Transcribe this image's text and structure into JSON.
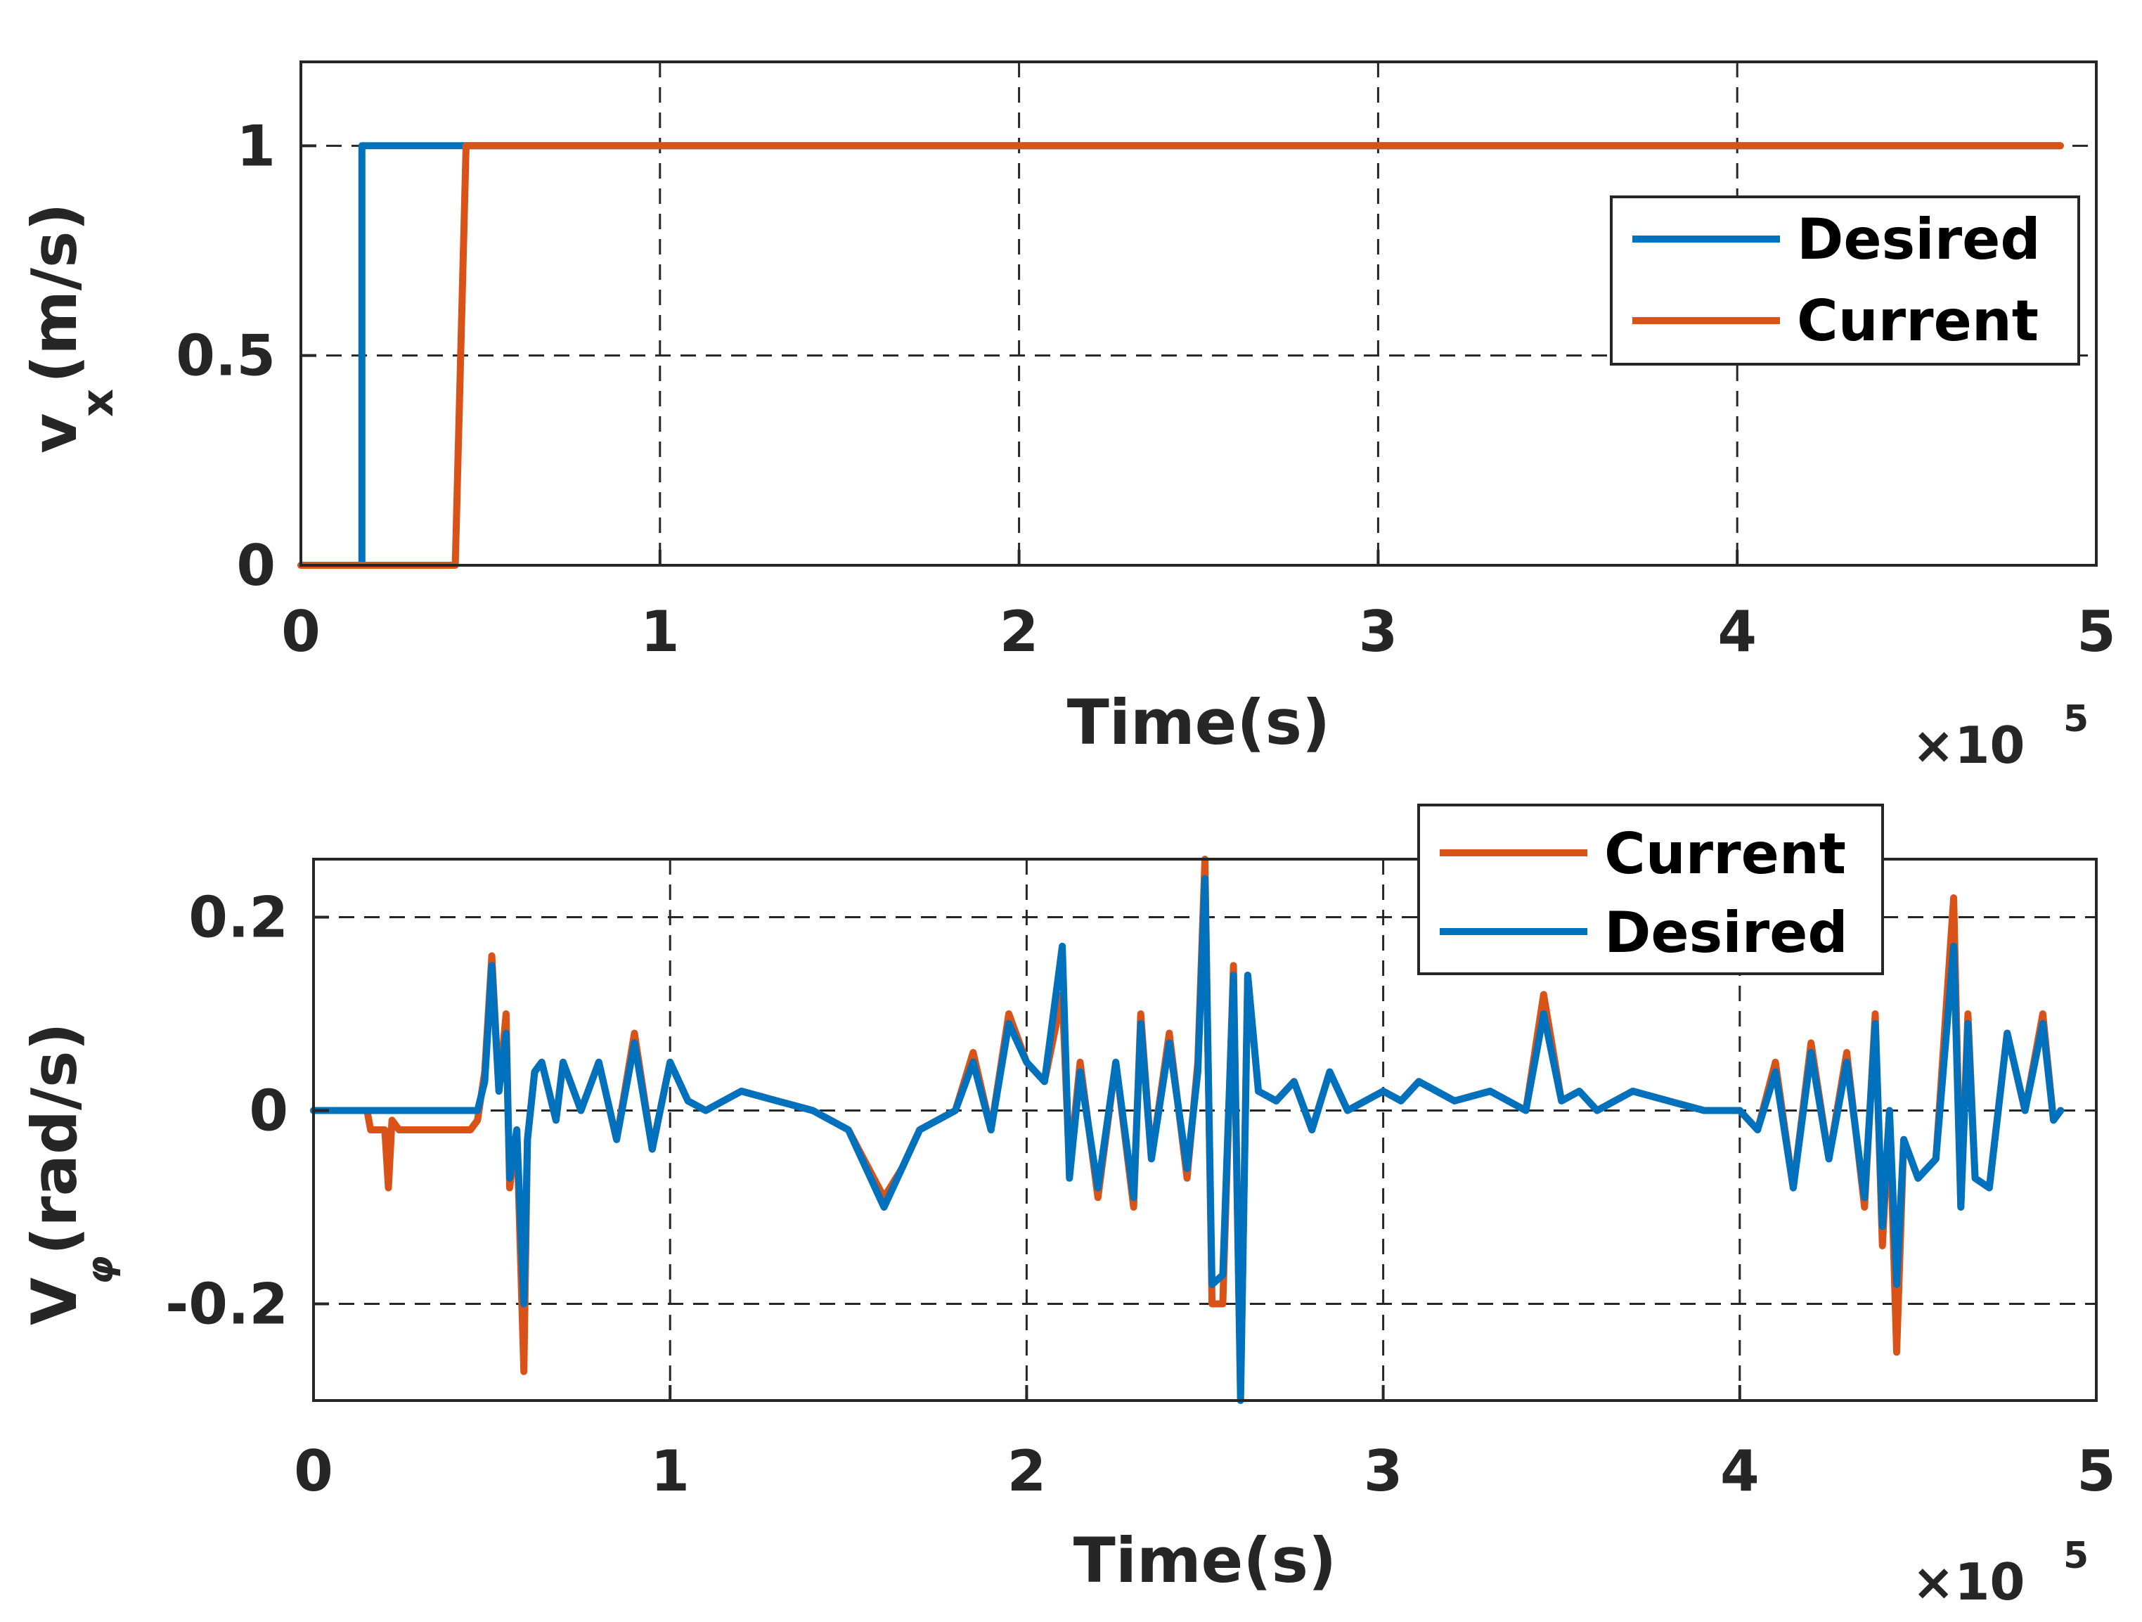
{
  "colors": {
    "desired": "#0072BD",
    "current": "#D95319",
    "axis": "#262626",
    "grid": "#262626"
  },
  "chart_data": [
    {
      "type": "line",
      "xlabel": "Time(s)",
      "ylabel": "v",
      "ylabel_sub": "x",
      "ylabel_unit": "(m/s)",
      "x_exponent_base": "×10",
      "x_exponent_power": "5",
      "xlim": [
        0,
        5
      ],
      "ylim": [
        0,
        1.2
      ],
      "xticks": [
        0,
        1,
        2,
        3,
        4,
        5
      ],
      "xtick_labels": [
        "0",
        "1",
        "2",
        "3",
        "4",
        "5"
      ],
      "yticks": [
        0,
        0.5,
        1
      ],
      "ytick_labels": [
        "0",
        "0.5",
        "1"
      ],
      "grid": true,
      "legend_position": "top-right",
      "legend": [
        "Desired",
        "Current"
      ],
      "series": [
        {
          "name": "Desired",
          "color_key": "desired",
          "x": [
            0,
            0.17,
            0.17,
            4.9
          ],
          "y": [
            0,
            0,
            1,
            1
          ]
        },
        {
          "name": "Current",
          "color_key": "current",
          "x": [
            0,
            0.43,
            0.46,
            4.9
          ],
          "y": [
            0,
            0,
            1,
            1
          ]
        }
      ]
    },
    {
      "type": "line",
      "xlabel": "Time(s)",
      "ylabel": "V",
      "ylabel_sub": "φ",
      "ylabel_unit": "(rad/s)",
      "x_exponent_base": "×10",
      "x_exponent_power": "5",
      "xlim": [
        0,
        5
      ],
      "ylim": [
        -0.3,
        0.26
      ],
      "xticks": [
        0,
        1,
        2,
        3,
        4,
        5
      ],
      "xtick_labels": [
        "0",
        "1",
        "2",
        "3",
        "4",
        "5"
      ],
      "yticks": [
        -0.2,
        0,
        0.2
      ],
      "ytick_labels": [
        "-0.2",
        "0",
        "0.2"
      ],
      "grid": true,
      "legend_position": "top-right",
      "legend": [
        "Current",
        "Desired"
      ],
      "series": [
        {
          "name": "Current",
          "color_key": "current",
          "x": [
            0,
            0.15,
            0.16,
            0.2,
            0.21,
            0.22,
            0.24,
            0.3,
            0.4,
            0.44,
            0.46,
            0.48,
            0.5,
            0.52,
            0.54,
            0.55,
            0.57,
            0.59,
            0.6,
            0.62,
            0.64,
            0.66,
            0.68,
            0.7,
            0.75,
            0.8,
            0.85,
            0.9,
            0.95,
            1.0,
            1.05,
            1.1,
            1.2,
            1.3,
            1.4,
            1.5,
            1.6,
            1.65,
            1.7,
            1.8,
            1.85,
            1.9,
            1.95,
            2.0,
            2.05,
            2.1,
            2.12,
            2.15,
            2.2,
            2.25,
            2.3,
            2.32,
            2.35,
            2.4,
            2.45,
            2.48,
            2.5,
            2.52,
            2.55,
            2.58,
            2.6,
            2.62,
            2.65,
            2.7,
            2.75,
            2.8,
            2.85,
            2.9,
            2.95,
            3.0,
            3.05,
            3.1,
            3.2,
            3.3,
            3.4,
            3.45,
            3.5,
            3.55,
            3.6,
            3.7,
            3.8,
            3.9,
            4.0,
            4.05,
            4.1,
            4.15,
            4.2,
            4.25,
            4.3,
            4.35,
            4.38,
            4.4,
            4.42,
            4.44,
            4.46,
            4.5,
            4.55,
            4.6,
            4.62,
            4.64,
            4.66,
            4.7,
            4.75,
            4.8,
            4.85,
            4.88,
            4.9
          ],
          "y": [
            0,
            0,
            -0.02,
            -0.02,
            -0.08,
            -0.01,
            -0.02,
            -0.02,
            -0.02,
            -0.02,
            -0.01,
            0.04,
            0.16,
            0.02,
            0.1,
            -0.08,
            -0.02,
            -0.27,
            -0.03,
            0.04,
            0.05,
            0.02,
            -0.01,
            0.05,
            0.0,
            0.05,
            -0.03,
            0.08,
            -0.04,
            0.05,
            0.01,
            0.0,
            0.02,
            0.01,
            0.0,
            -0.02,
            -0.09,
            -0.06,
            -0.02,
            0.0,
            0.06,
            -0.02,
            0.1,
            0.05,
            0.03,
            0.12,
            -0.06,
            0.05,
            -0.09,
            0.05,
            -0.1,
            0.1,
            -0.05,
            0.08,
            -0.07,
            0.05,
            0.26,
            -0.2,
            -0.2,
            0.15,
            -0.29,
            0.14,
            0.02,
            0.01,
            0.03,
            -0.02,
            0.04,
            0.0,
            0.01,
            0.02,
            0.01,
            0.03,
            0.01,
            0.02,
            0.0,
            0.12,
            0.01,
            0.02,
            0.0,
            0.02,
            0.01,
            0.0,
            0.0,
            -0.02,
            0.05,
            -0.08,
            0.07,
            -0.05,
            0.06,
            -0.1,
            0.1,
            -0.14,
            0.0,
            -0.25,
            -0.03,
            -0.07,
            -0.05,
            0.22,
            -0.1,
            0.1,
            -0.07,
            -0.08,
            0.08,
            0.0,
            0.1,
            -0.01,
            0.0
          ]
        },
        {
          "name": "Desired",
          "color_key": "desired",
          "x": [
            0,
            0.1,
            0.2,
            0.3,
            0.4,
            0.44,
            0.46,
            0.48,
            0.5,
            0.52,
            0.54,
            0.55,
            0.57,
            0.59,
            0.6,
            0.62,
            0.64,
            0.66,
            0.68,
            0.7,
            0.75,
            0.8,
            0.85,
            0.9,
            0.95,
            1.0,
            1.05,
            1.1,
            1.2,
            1.3,
            1.4,
            1.5,
            1.6,
            1.65,
            1.7,
            1.8,
            1.85,
            1.9,
            1.95,
            2.0,
            2.05,
            2.1,
            2.12,
            2.15,
            2.2,
            2.25,
            2.3,
            2.32,
            2.35,
            2.4,
            2.45,
            2.48,
            2.5,
            2.52,
            2.55,
            2.58,
            2.6,
            2.62,
            2.65,
            2.7,
            2.75,
            2.8,
            2.85,
            2.9,
            2.95,
            3.0,
            3.05,
            3.1,
            3.2,
            3.3,
            3.4,
            3.45,
            3.5,
            3.55,
            3.6,
            3.7,
            3.8,
            3.9,
            4.0,
            4.05,
            4.1,
            4.15,
            4.2,
            4.25,
            4.3,
            4.35,
            4.38,
            4.4,
            4.42,
            4.44,
            4.46,
            4.5,
            4.55,
            4.6,
            4.62,
            4.64,
            4.66,
            4.7,
            4.75,
            4.8,
            4.85,
            4.88,
            4.9
          ],
          "y": [
            0,
            0,
            0,
            0,
            0,
            0,
            0.0,
            0.03,
            0.15,
            0.02,
            0.08,
            -0.07,
            -0.02,
            -0.2,
            -0.03,
            0.04,
            0.05,
            0.02,
            -0.01,
            0.05,
            0.0,
            0.05,
            -0.03,
            0.07,
            -0.04,
            0.05,
            0.01,
            0.0,
            0.02,
            0.01,
            0.0,
            -0.02,
            -0.1,
            -0.06,
            -0.02,
            0.0,
            0.05,
            -0.02,
            0.09,
            0.05,
            0.03,
            0.17,
            -0.07,
            0.04,
            -0.08,
            0.05,
            -0.09,
            0.09,
            -0.05,
            0.07,
            -0.06,
            0.04,
            0.24,
            -0.18,
            -0.17,
            0.14,
            -0.3,
            0.14,
            0.02,
            0.01,
            0.03,
            -0.02,
            0.04,
            0.0,
            0.01,
            0.02,
            0.01,
            0.03,
            0.01,
            0.02,
            0.0,
            0.1,
            0.01,
            0.02,
            0.0,
            0.02,
            0.01,
            0.0,
            0.0,
            -0.02,
            0.04,
            -0.08,
            0.06,
            -0.05,
            0.05,
            -0.09,
            0.09,
            -0.12,
            0.0,
            -0.18,
            -0.03,
            -0.07,
            -0.05,
            0.17,
            -0.1,
            0.09,
            -0.07,
            -0.08,
            0.08,
            0.0,
            0.09,
            -0.01,
            0.0
          ]
        }
      ]
    }
  ]
}
